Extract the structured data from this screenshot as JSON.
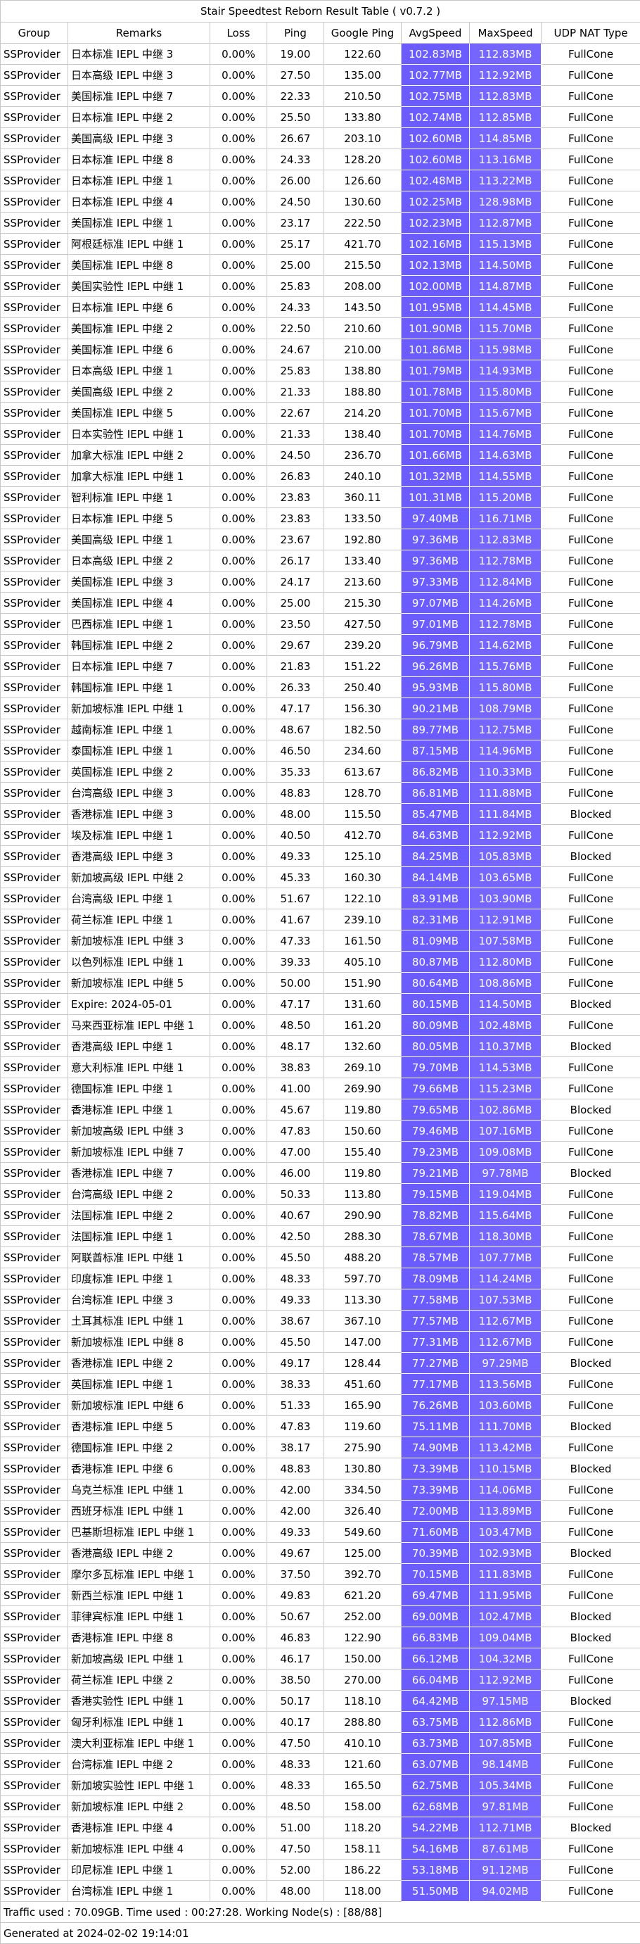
{
  "title": "Stair Speedtest Reborn Result Table ( v0.7.2 )",
  "headers": [
    "Group",
    "Remarks",
    "Loss",
    "Ping",
    "Google Ping",
    "AvgSpeed",
    "MaxSpeed",
    "UDP NAT Type"
  ],
  "colors": {
    "speed_cell_primary": "#6a5cff",
    "speed_cell_alt": "#7466ff",
    "border": "#c8c8c8"
  },
  "rows": [
    [
      "SSProvider",
      "日本标准 IEPL 中继 3",
      "0.00%",
      "19.00",
      "122.60",
      "102.83MB",
      "112.83MB",
      "FullCone"
    ],
    [
      "SSProvider",
      "日本高级 IEPL 中继 3",
      "0.00%",
      "27.50",
      "135.00",
      "102.77MB",
      "112.92MB",
      "FullCone"
    ],
    [
      "SSProvider",
      "美国标准 IEPL 中继 7",
      "0.00%",
      "22.33",
      "210.50",
      "102.75MB",
      "112.83MB",
      "FullCone"
    ],
    [
      "SSProvider",
      "日本标准 IEPL 中继 2",
      "0.00%",
      "25.50",
      "133.80",
      "102.74MB",
      "112.85MB",
      "FullCone"
    ],
    [
      "SSProvider",
      "美国高级 IEPL 中继 3",
      "0.00%",
      "26.67",
      "203.10",
      "102.60MB",
      "114.85MB",
      "FullCone"
    ],
    [
      "SSProvider",
      "日本标准 IEPL 中继 8",
      "0.00%",
      "24.33",
      "128.20",
      "102.60MB",
      "113.16MB",
      "FullCone"
    ],
    [
      "SSProvider",
      "日本标准 IEPL 中继 1",
      "0.00%",
      "26.00",
      "126.60",
      "102.48MB",
      "113.22MB",
      "FullCone"
    ],
    [
      "SSProvider",
      "日本标准 IEPL 中继 4",
      "0.00%",
      "24.50",
      "130.60",
      "102.25MB",
      "128.98MB",
      "FullCone"
    ],
    [
      "SSProvider",
      "美国标准 IEPL 中继 1",
      "0.00%",
      "23.17",
      "222.50",
      "102.23MB",
      "112.87MB",
      "FullCone"
    ],
    [
      "SSProvider",
      "阿根廷标准 IEPL 中继 1",
      "0.00%",
      "25.17",
      "421.70",
      "102.16MB",
      "115.13MB",
      "FullCone"
    ],
    [
      "SSProvider",
      "美国标准 IEPL 中继 8",
      "0.00%",
      "25.00",
      "215.50",
      "102.13MB",
      "114.50MB",
      "FullCone"
    ],
    [
      "SSProvider",
      "美国实验性 IEPL 中继 1",
      "0.00%",
      "25.83",
      "208.00",
      "102.00MB",
      "114.87MB",
      "FullCone"
    ],
    [
      "SSProvider",
      "日本标准 IEPL 中继 6",
      "0.00%",
      "24.33",
      "143.50",
      "101.95MB",
      "114.45MB",
      "FullCone"
    ],
    [
      "SSProvider",
      "美国标准 IEPL 中继 2",
      "0.00%",
      "22.50",
      "210.60",
      "101.90MB",
      "115.70MB",
      "FullCone"
    ],
    [
      "SSProvider",
      "美国标准 IEPL 中继 6",
      "0.00%",
      "24.67",
      "210.00",
      "101.86MB",
      "115.98MB",
      "FullCone"
    ],
    [
      "SSProvider",
      "日本高级 IEPL 中继 1",
      "0.00%",
      "25.83",
      "138.80",
      "101.79MB",
      "114.93MB",
      "FullCone"
    ],
    [
      "SSProvider",
      "美国高级 IEPL 中继 2",
      "0.00%",
      "21.33",
      "188.80",
      "101.78MB",
      "115.80MB",
      "FullCone"
    ],
    [
      "SSProvider",
      "美国标准 IEPL 中继 5",
      "0.00%",
      "22.67",
      "214.20",
      "101.70MB",
      "115.67MB",
      "FullCone"
    ],
    [
      "SSProvider",
      "日本实验性 IEPL 中继 1",
      "0.00%",
      "21.33",
      "138.40",
      "101.70MB",
      "114.76MB",
      "FullCone"
    ],
    [
      "SSProvider",
      "加拿大标准 IEPL 中继 2",
      "0.00%",
      "24.50",
      "236.70",
      "101.66MB",
      "114.63MB",
      "FullCone"
    ],
    [
      "SSProvider",
      "加拿大标准 IEPL 中继 1",
      "0.00%",
      "26.83",
      "240.10",
      "101.32MB",
      "114.55MB",
      "FullCone"
    ],
    [
      "SSProvider",
      "智利标准 IEPL 中继 1",
      "0.00%",
      "23.83",
      "360.11",
      "101.31MB",
      "115.20MB",
      "FullCone"
    ],
    [
      "SSProvider",
      "日本标准 IEPL 中继 5",
      "0.00%",
      "23.83",
      "133.50",
      "97.40MB",
      "116.71MB",
      "FullCone"
    ],
    [
      "SSProvider",
      "美国高级 IEPL 中继 1",
      "0.00%",
      "23.67",
      "192.80",
      "97.36MB",
      "112.83MB",
      "FullCone"
    ],
    [
      "SSProvider",
      "日本高级 IEPL 中继 2",
      "0.00%",
      "26.17",
      "133.40",
      "97.36MB",
      "112.78MB",
      "FullCone"
    ],
    [
      "SSProvider",
      "美国标准 IEPL 中继 3",
      "0.00%",
      "24.17",
      "213.60",
      "97.33MB",
      "112.84MB",
      "FullCone"
    ],
    [
      "SSProvider",
      "美国标准 IEPL 中继 4",
      "0.00%",
      "25.00",
      "215.30",
      "97.07MB",
      "114.26MB",
      "FullCone"
    ],
    [
      "SSProvider",
      "巴西标准 IEPL 中继 1",
      "0.00%",
      "23.50",
      "427.50",
      "97.01MB",
      "112.78MB",
      "FullCone"
    ],
    [
      "SSProvider",
      "韩国标准 IEPL 中继 2",
      "0.00%",
      "29.67",
      "239.20",
      "96.79MB",
      "114.62MB",
      "FullCone"
    ],
    [
      "SSProvider",
      "日本标准 IEPL 中继 7",
      "0.00%",
      "21.83",
      "151.22",
      "96.26MB",
      "115.76MB",
      "FullCone"
    ],
    [
      "SSProvider",
      "韩国标准 IEPL 中继 1",
      "0.00%",
      "26.33",
      "250.40",
      "95.93MB",
      "115.80MB",
      "FullCone"
    ],
    [
      "SSProvider",
      "新加坡标准 IEPL 中继 1",
      "0.00%",
      "47.17",
      "156.30",
      "90.21MB",
      "108.79MB",
      "FullCone"
    ],
    [
      "SSProvider",
      "越南标准 IEPL 中继 1",
      "0.00%",
      "48.67",
      "182.50",
      "89.77MB",
      "112.75MB",
      "FullCone"
    ],
    [
      "SSProvider",
      "泰国标准 IEPL 中继 1",
      "0.00%",
      "46.50",
      "234.60",
      "87.15MB",
      "114.96MB",
      "FullCone"
    ],
    [
      "SSProvider",
      "英国标准 IEPL 中继 2",
      "0.00%",
      "35.33",
      "613.67",
      "86.82MB",
      "110.33MB",
      "FullCone"
    ],
    [
      "SSProvider",
      "台湾高级 IEPL 中继 3",
      "0.00%",
      "48.83",
      "128.70",
      "86.81MB",
      "111.88MB",
      "FullCone"
    ],
    [
      "SSProvider",
      "香港标准 IEPL 中继 3",
      "0.00%",
      "48.00",
      "115.50",
      "85.47MB",
      "111.84MB",
      "Blocked"
    ],
    [
      "SSProvider",
      "埃及标准 IEPL 中继 1",
      "0.00%",
      "40.50",
      "412.70",
      "84.63MB",
      "112.92MB",
      "FullCone"
    ],
    [
      "SSProvider",
      "香港高级 IEPL 中继 3",
      "0.00%",
      "49.33",
      "125.10",
      "84.25MB",
      "105.83MB",
      "Blocked"
    ],
    [
      "SSProvider",
      "新加坡高级 IEPL 中继 2",
      "0.00%",
      "45.33",
      "160.30",
      "84.14MB",
      "103.65MB",
      "FullCone"
    ],
    [
      "SSProvider",
      "台湾高级 IEPL 中继 1",
      "0.00%",
      "51.67",
      "122.10",
      "83.91MB",
      "103.90MB",
      "FullCone"
    ],
    [
      "SSProvider",
      "荷兰标准 IEPL 中继 1",
      "0.00%",
      "41.67",
      "239.10",
      "82.31MB",
      "112.91MB",
      "FullCone"
    ],
    [
      "SSProvider",
      "新加坡标准 IEPL 中继 3",
      "0.00%",
      "47.33",
      "161.50",
      "81.09MB",
      "107.58MB",
      "FullCone"
    ],
    [
      "SSProvider",
      "以色列标准 IEPL 中继 1",
      "0.00%",
      "39.33",
      "405.10",
      "80.87MB",
      "112.80MB",
      "FullCone"
    ],
    [
      "SSProvider",
      "新加坡标准 IEPL 中继 5",
      "0.00%",
      "50.00",
      "151.90",
      "80.64MB",
      "108.86MB",
      "FullCone"
    ],
    [
      "SSProvider",
      "Expire: 2024-05-01",
      "0.00%",
      "47.17",
      "131.60",
      "80.15MB",
      "114.50MB",
      "Blocked"
    ],
    [
      "SSProvider",
      "马来西亚标准 IEPL 中继 1",
      "0.00%",
      "48.50",
      "161.20",
      "80.09MB",
      "102.48MB",
      "FullCone"
    ],
    [
      "SSProvider",
      "香港高级 IEPL 中继 1",
      "0.00%",
      "48.17",
      "132.60",
      "80.05MB",
      "110.37MB",
      "Blocked"
    ],
    [
      "SSProvider",
      "意大利标准 IEPL 中继 1",
      "0.00%",
      "38.83",
      "269.10",
      "79.70MB",
      "114.53MB",
      "FullCone"
    ],
    [
      "SSProvider",
      "德国标准 IEPL 中继 1",
      "0.00%",
      "41.00",
      "269.90",
      "79.66MB",
      "115.23MB",
      "FullCone"
    ],
    [
      "SSProvider",
      "香港标准 IEPL 中继 1",
      "0.00%",
      "45.67",
      "119.80",
      "79.65MB",
      "102.86MB",
      "Blocked"
    ],
    [
      "SSProvider",
      "新加坡高级 IEPL 中继 3",
      "0.00%",
      "47.83",
      "150.60",
      "79.46MB",
      "107.16MB",
      "FullCone"
    ],
    [
      "SSProvider",
      "新加坡标准 IEPL 中继 7",
      "0.00%",
      "47.00",
      "155.40",
      "79.23MB",
      "109.08MB",
      "FullCone"
    ],
    [
      "SSProvider",
      "香港标准 IEPL 中继 7",
      "0.00%",
      "46.00",
      "119.80",
      "79.21MB",
      "97.78MB",
      "Blocked"
    ],
    [
      "SSProvider",
      "台湾高级 IEPL 中继 2",
      "0.00%",
      "50.33",
      "113.80",
      "79.15MB",
      "119.04MB",
      "FullCone"
    ],
    [
      "SSProvider",
      "法国标准 IEPL 中继 2",
      "0.00%",
      "40.67",
      "290.90",
      "78.82MB",
      "115.64MB",
      "FullCone"
    ],
    [
      "SSProvider",
      "法国标准 IEPL 中继 1",
      "0.00%",
      "42.50",
      "288.30",
      "78.67MB",
      "118.30MB",
      "FullCone"
    ],
    [
      "SSProvider",
      "阿联酋标准 IEPL 中继 1",
      "0.00%",
      "45.50",
      "488.20",
      "78.57MB",
      "107.77MB",
      "FullCone"
    ],
    [
      "SSProvider",
      "印度标准 IEPL 中继 1",
      "0.00%",
      "48.33",
      "597.70",
      "78.09MB",
      "114.24MB",
      "FullCone"
    ],
    [
      "SSProvider",
      "台湾标准 IEPL 中继 3",
      "0.00%",
      "49.33",
      "113.30",
      "77.58MB",
      "107.53MB",
      "FullCone"
    ],
    [
      "SSProvider",
      "土耳其标准 IEPL 中继 1",
      "0.00%",
      "38.67",
      "367.10",
      "77.57MB",
      "112.67MB",
      "FullCone"
    ],
    [
      "SSProvider",
      "新加坡标准 IEPL 中继 8",
      "0.00%",
      "45.50",
      "147.00",
      "77.31MB",
      "112.67MB",
      "FullCone"
    ],
    [
      "SSProvider",
      "香港标准 IEPL 中继 2",
      "0.00%",
      "49.17",
      "128.44",
      "77.27MB",
      "97.29MB",
      "Blocked"
    ],
    [
      "SSProvider",
      "英国标准 IEPL 中继 1",
      "0.00%",
      "38.33",
      "451.60",
      "77.17MB",
      "113.56MB",
      "FullCone"
    ],
    [
      "SSProvider",
      "新加坡标准 IEPL 中继 6",
      "0.00%",
      "51.33",
      "165.90",
      "76.26MB",
      "103.60MB",
      "FullCone"
    ],
    [
      "SSProvider",
      "香港标准 IEPL 中继 5",
      "0.00%",
      "47.83",
      "119.60",
      "75.11MB",
      "111.70MB",
      "Blocked"
    ],
    [
      "SSProvider",
      "德国标准 IEPL 中继 2",
      "0.00%",
      "38.17",
      "275.90",
      "74.90MB",
      "113.42MB",
      "FullCone"
    ],
    [
      "SSProvider",
      "香港标准 IEPL 中继 6",
      "0.00%",
      "48.83",
      "130.80",
      "73.39MB",
      "110.15MB",
      "Blocked"
    ],
    [
      "SSProvider",
      "乌克兰标准 IEPL 中继 1",
      "0.00%",
      "42.00",
      "334.50",
      "73.39MB",
      "114.06MB",
      "FullCone"
    ],
    [
      "SSProvider",
      "西班牙标准 IEPL 中继 1",
      "0.00%",
      "42.00",
      "326.40",
      "72.00MB",
      "113.89MB",
      "FullCone"
    ],
    [
      "SSProvider",
      "巴基斯坦标准 IEPL 中继 1",
      "0.00%",
      "49.33",
      "549.60",
      "71.60MB",
      "103.47MB",
      "FullCone"
    ],
    [
      "SSProvider",
      "香港高级 IEPL 中继 2",
      "0.00%",
      "49.67",
      "125.00",
      "70.39MB",
      "102.93MB",
      "Blocked"
    ],
    [
      "SSProvider",
      "摩尔多瓦标准 IEPL 中继 1",
      "0.00%",
      "37.50",
      "392.70",
      "70.15MB",
      "111.83MB",
      "FullCone"
    ],
    [
      "SSProvider",
      "新西兰标准 IEPL 中继 1",
      "0.00%",
      "49.83",
      "621.20",
      "69.47MB",
      "111.95MB",
      "FullCone"
    ],
    [
      "SSProvider",
      "菲律宾标准 IEPL 中继 1",
      "0.00%",
      "50.67",
      "252.00",
      "69.00MB",
      "102.47MB",
      "Blocked"
    ],
    [
      "SSProvider",
      "香港标准 IEPL 中继 8",
      "0.00%",
      "46.83",
      "122.90",
      "66.83MB",
      "109.04MB",
      "Blocked"
    ],
    [
      "SSProvider",
      "新加坡高级 IEPL 中继 1",
      "0.00%",
      "46.17",
      "150.00",
      "66.12MB",
      "104.32MB",
      "FullCone"
    ],
    [
      "SSProvider",
      "荷兰标准 IEPL 中继 2",
      "0.00%",
      "38.50",
      "270.00",
      "66.04MB",
      "112.92MB",
      "FullCone"
    ],
    [
      "SSProvider",
      "香港实验性 IEPL 中继 1",
      "0.00%",
      "50.17",
      "118.10",
      "64.42MB",
      "97.15MB",
      "Blocked"
    ],
    [
      "SSProvider",
      "匈牙利标准 IEPL 中继 1",
      "0.00%",
      "40.17",
      "288.80",
      "63.75MB",
      "112.86MB",
      "FullCone"
    ],
    [
      "SSProvider",
      "澳大利亚标准 IEPL 中继 1",
      "0.00%",
      "47.50",
      "410.10",
      "63.73MB",
      "107.85MB",
      "FullCone"
    ],
    [
      "SSProvider",
      "台湾标准 IEPL 中继 2",
      "0.00%",
      "48.33",
      "121.60",
      "63.07MB",
      "98.14MB",
      "FullCone"
    ],
    [
      "SSProvider",
      "新加坡实验性 IEPL 中继 1",
      "0.00%",
      "48.33",
      "165.50",
      "62.75MB",
      "105.34MB",
      "FullCone"
    ],
    [
      "SSProvider",
      "新加坡标准 IEPL 中继 2",
      "0.00%",
      "48.50",
      "158.00",
      "62.68MB",
      "97.81MB",
      "FullCone"
    ],
    [
      "SSProvider",
      "香港标准 IEPL 中继 4",
      "0.00%",
      "51.00",
      "118.20",
      "54.22MB",
      "112.71MB",
      "Blocked"
    ],
    [
      "SSProvider",
      "新加坡标准 IEPL 中继 4",
      "0.00%",
      "47.50",
      "158.11",
      "54.16MB",
      "87.61MB",
      "FullCone"
    ],
    [
      "SSProvider",
      "印尼标准 IEPL 中继 1",
      "0.00%",
      "52.00",
      "186.22",
      "53.18MB",
      "91.12MB",
      "FullCone"
    ],
    [
      "SSProvider",
      "台湾标准 IEPL 中继 1",
      "0.00%",
      "48.00",
      "118.00",
      "51.50MB",
      "94.02MB",
      "FullCone"
    ]
  ],
  "footer": {
    "traffic": "Traffic used : 70.09GB. Time used : 00:27:28. Working Node(s) : [88/88]",
    "generated": "Generated at 2024-02-02 19:14:01"
  }
}
